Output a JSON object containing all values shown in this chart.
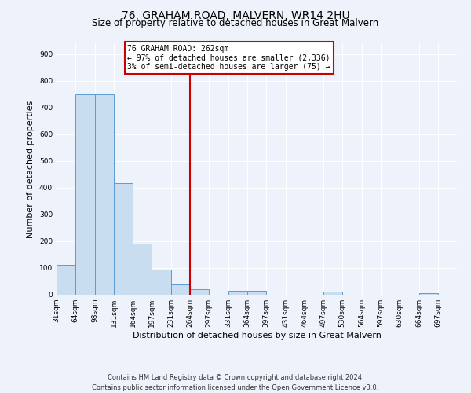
{
  "title": "76, GRAHAM ROAD, MALVERN, WR14 2HU",
  "subtitle": "Size of property relative to detached houses in Great Malvern",
  "xlabel": "Distribution of detached houses by size in Great Malvern",
  "ylabel": "Number of detached properties",
  "bar_edges": [
    31,
    64,
    98,
    131,
    164,
    197,
    231,
    264,
    297,
    331,
    364,
    397,
    431,
    464,
    497,
    530,
    564,
    597,
    630,
    664,
    697
  ],
  "bar_heights": [
    113,
    748,
    750,
    418,
    190,
    95,
    40,
    20,
    0,
    15,
    15,
    0,
    0,
    0,
    12,
    0,
    0,
    0,
    0,
    5
  ],
  "bar_color": "#c9ddf0",
  "bar_edge_color": "#5b9bd5",
  "property_line_x": 264,
  "property_line_color": "#cc0000",
  "annotation_box_color": "#cc0000",
  "annotation_title": "76 GRAHAM ROAD: 262sqm",
  "annotation_line1": "← 97% of detached houses are smaller (2,336)",
  "annotation_line2": "3% of semi-detached houses are larger (75) →",
  "ylim": [
    0,
    940
  ],
  "yticks": [
    0,
    100,
    200,
    300,
    400,
    500,
    600,
    700,
    800,
    900
  ],
  "tick_labels": [
    "31sqm",
    "64sqm",
    "98sqm",
    "131sqm",
    "164sqm",
    "197sqm",
    "231sqm",
    "264sqm",
    "297sqm",
    "331sqm",
    "364sqm",
    "397sqm",
    "431sqm",
    "464sqm",
    "497sqm",
    "530sqm",
    "564sqm",
    "597sqm",
    "630sqm",
    "664sqm",
    "697sqm"
  ],
  "footer_line1": "Contains HM Land Registry data © Crown copyright and database right 2024.",
  "footer_line2": "Contains public sector information licensed under the Open Government Licence v3.0.",
  "background_color": "#eef2fb",
  "grid_color": "#ffffff",
  "title_fontsize": 10,
  "subtitle_fontsize": 8.5,
  "axis_label_fontsize": 8,
  "tick_fontsize": 6.5,
  "footer_fontsize": 6,
  "annotation_fontsize": 7
}
